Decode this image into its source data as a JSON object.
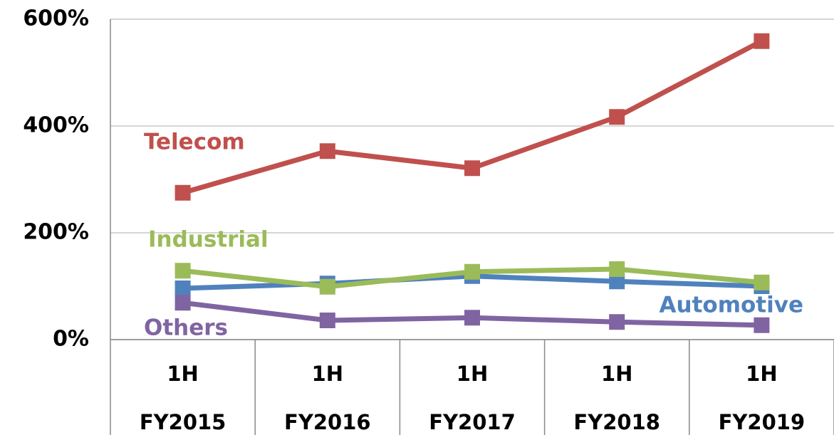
{
  "chart_data": {
    "type": "line",
    "categories": [
      [
        "1H",
        "FY2015"
      ],
      [
        "1H",
        "FY2016"
      ],
      [
        "1H",
        "FY2017"
      ],
      [
        "1H",
        "FY2018"
      ],
      [
        "1H",
        "FY2019"
      ]
    ],
    "series": [
      {
        "name": "Telecom",
        "color": "#c0504d",
        "values": [
          275,
          353,
          321,
          417,
          559
        ]
      },
      {
        "name": "Automotive",
        "color": "#4f81bd",
        "values": [
          96,
          105,
          119,
          109,
          100
        ]
      },
      {
        "name": "Industrial",
        "color": "#9bbb59",
        "values": [
          129,
          99,
          127,
          132,
          107
        ]
      },
      {
        "name": "Others",
        "color": "#8064a2",
        "values": [
          69,
          36,
          41,
          33,
          27
        ]
      }
    ],
    "ylim": [
      0,
      600
    ],
    "yticks": [
      {
        "value": 0,
        "label": "0%"
      },
      {
        "value": 200,
        "label": "200%"
      },
      {
        "value": 400,
        "label": "400%"
      },
      {
        "value": 600,
        "label": "600%"
      }
    ],
    "grid": true
  }
}
